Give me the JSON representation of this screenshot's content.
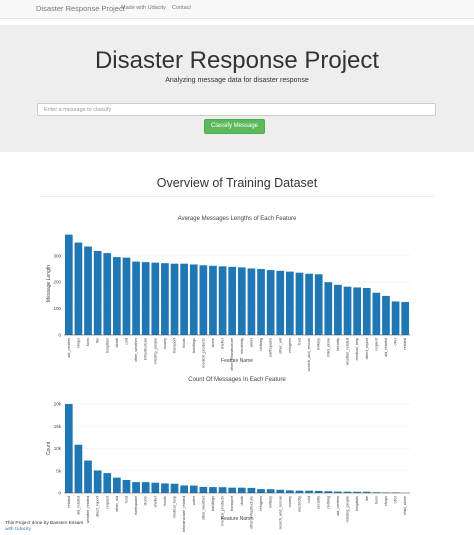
{
  "navbar": {
    "brand": "Disaster Response Project",
    "links": [
      "Made with Udacity",
      "Contact"
    ]
  },
  "jumbotron": {
    "title": "Disaster Response Project",
    "subtitle": "Analyzing message data for disaster response",
    "input_placeholder": "Enter a message to classify",
    "button_label": "Classify Message"
  },
  "section_title": "Overview of Training Dataset",
  "chart_data": [
    {
      "type": "bar",
      "title": "Average Messages Lengths of Each Feature",
      "xlabel": "Feature Name",
      "ylabel": "Message Length",
      "ylim": [
        0,
        390
      ],
      "yticks": [
        0,
        100,
        200,
        300
      ],
      "ytick_labels": [
        "0",
        "100",
        "200",
        "300"
      ],
      "color": "#1f77b4",
      "categories": [
        "aid_centers",
        "shops",
        "tools",
        "fire",
        "hospitals",
        "death",
        "cold",
        "other_weather",
        "infrastructure",
        "missing_people",
        "money",
        "transport",
        "floods",
        "buildings",
        "medical_products",
        "storm",
        "shelter",
        "other_infrastructure",
        "electricity",
        "water",
        "clothing",
        "earthquake",
        "other_aid",
        "refugees",
        "food",
        "search_and_rescue",
        "military",
        "child_alone",
        "security",
        "weather_related",
        "medical_help",
        "direct_report",
        "request",
        "aid_related",
        "offer",
        "related"
      ],
      "values": [
        380,
        350,
        335,
        318,
        310,
        295,
        293,
        278,
        276,
        274,
        272,
        270,
        270,
        267,
        264,
        262,
        260,
        258,
        256,
        252,
        250,
        246,
        243,
        240,
        236,
        232,
        230,
        200,
        190,
        183,
        180,
        178,
        160,
        148,
        127,
        125
      ]
    },
    {
      "type": "bar",
      "title": "Count Of Messages In Each Feature",
      "xlabel": "Feature Name",
      "ylabel": "Count",
      "ylim": [
        0,
        20000
      ],
      "yticks": [
        0,
        5000,
        10000,
        15000,
        20000
      ],
      "ytick_labels": [
        "0",
        "5k",
        "10k",
        "15k",
        "20k"
      ],
      "color": "#1f77b4",
      "categories": [
        "related",
        "aid_related",
        "weather_related",
        "direct_report",
        "request",
        "other_aid",
        "food",
        "earthquake",
        "storm",
        "shelter",
        "floods",
        "medical_help",
        "infrastructure_related",
        "water",
        "other_weather",
        "buildings",
        "medical_products",
        "transport",
        "death",
        "other_infrastructure",
        "refugees",
        "military",
        "search_and_rescue",
        "money",
        "electricity",
        "cold",
        "security",
        "clothing",
        "aid_centers",
        "missing_people",
        "hospitals",
        "fire",
        "tools",
        "shops",
        "offer",
        "child_alone"
      ],
      "values": [
        20000,
        10850,
        7290,
        5070,
        4470,
        3450,
        2920,
        2450,
        2440,
        2310,
        2150,
        2080,
        1700,
        1670,
        1370,
        1330,
        1310,
        1200,
        1190,
        1150,
        880,
        860,
        720,
        600,
        530,
        530,
        470,
        400,
        310,
        300,
        280,
        280,
        160,
        120,
        120,
        10
      ]
    }
  ],
  "footer": {
    "line1": "This Project done by Bassem Essam",
    "line2": "with Udacity"
  }
}
